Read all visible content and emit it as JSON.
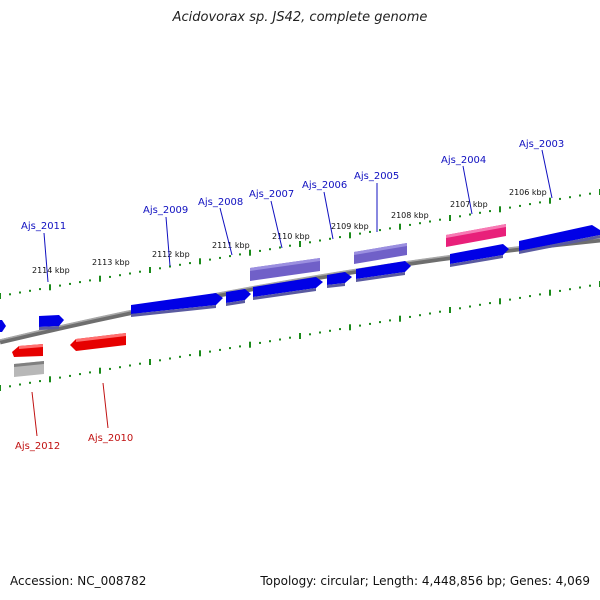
{
  "title": "Acidovorax sp. JS42, complete genome",
  "footer": {
    "accession": "Accession: NC_008782",
    "summary": "Topology: circular; Length: 4,448,856 bp; Genes: 4,069"
  },
  "colors": {
    "forward_gene": "#0000e6",
    "reverse_gene": "#e60000",
    "purple_gene": "#7060c8",
    "pink_gene": "#e8207a",
    "gray_gene": "#b0b0b0",
    "ticks": "#1a8a1a",
    "backbone": "#808080",
    "forward_label": "#1010c0",
    "reverse_label": "#c01010"
  },
  "ruler": {
    "labels": [
      "2114 kbp",
      "2113 kbp",
      "2112 kbp",
      "2111 kbp",
      "2110 kbp",
      "2109 kbp",
      "2108 kbp",
      "2107 kbp",
      "2106 kbp"
    ]
  },
  "genes": {
    "forward": [
      "Ajs_2011",
      "Ajs_2009",
      "Ajs_2008",
      "Ajs_2007",
      "Ajs_2006",
      "Ajs_2005",
      "Ajs_2004",
      "Ajs_2003"
    ],
    "reverse": [
      "Ajs_2012",
      "Ajs_2010"
    ]
  }
}
